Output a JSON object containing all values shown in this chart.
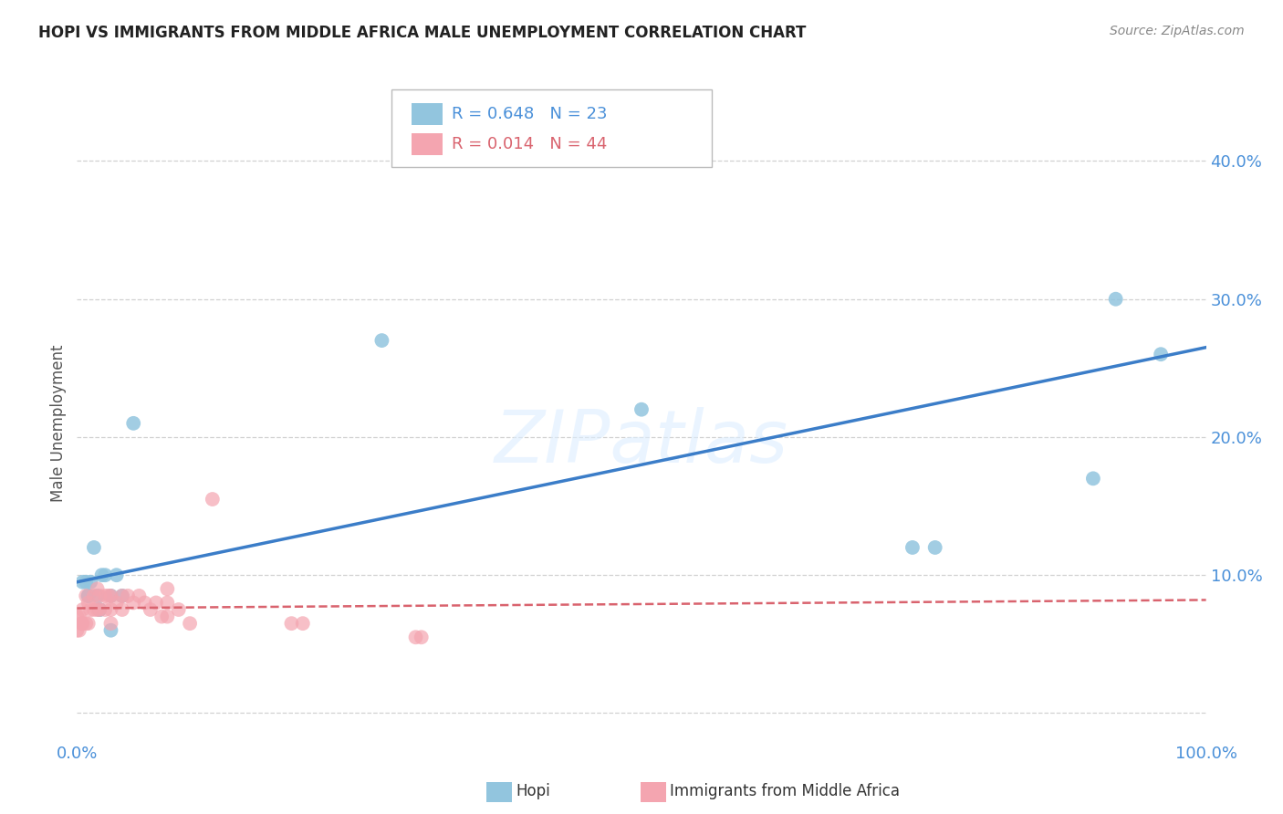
{
  "title": "HOPI VS IMMIGRANTS FROM MIDDLE AFRICA MALE UNEMPLOYMENT CORRELATION CHART",
  "source": "Source: ZipAtlas.com",
  "ylabel": "Male Unemployment",
  "watermark": "ZIPatlas",
  "xlim": [
    0,
    1.0
  ],
  "ylim": [
    -0.02,
    0.44
  ],
  "yticks": [
    0.0,
    0.1,
    0.2,
    0.3,
    0.4
  ],
  "ytick_labels": [
    "",
    "10.0%",
    "20.0%",
    "30.0%",
    "40.0%"
  ],
  "xticks": [
    0.0,
    0.2,
    0.4,
    0.6,
    0.8,
    1.0
  ],
  "xtick_labels": [
    "0.0%",
    "",
    "",
    "",
    "",
    "100.0%"
  ],
  "legend1_label": "Hopi",
  "legend2_label": "Immigrants from Middle Africa",
  "R_hopi": 0.648,
  "N_hopi": 23,
  "R_immig": 0.014,
  "N_immig": 44,
  "hopi_color": "#92c5de",
  "immig_color": "#f4a5b0",
  "hopi_line_color": "#3b7dc8",
  "immig_line_color": "#d9636e",
  "grid_color": "#cccccc",
  "hopi_scatter_x": [
    0.005,
    0.008,
    0.01,
    0.01,
    0.012,
    0.015,
    0.018,
    0.02,
    0.02,
    0.022,
    0.025,
    0.03,
    0.03,
    0.035,
    0.04,
    0.05,
    0.27,
    0.5,
    0.74,
    0.76,
    0.9,
    0.92,
    0.96
  ],
  "hopi_scatter_y": [
    0.095,
    0.095,
    0.085,
    0.085,
    0.095,
    0.12,
    0.085,
    0.075,
    0.075,
    0.1,
    0.1,
    0.085,
    0.06,
    0.1,
    0.085,
    0.21,
    0.27,
    0.22,
    0.12,
    0.12,
    0.17,
    0.3,
    0.26
  ],
  "immig_scatter_x": [
    0.0,
    0.0,
    0.002,
    0.002,
    0.004,
    0.005,
    0.005,
    0.008,
    0.008,
    0.01,
    0.01,
    0.012,
    0.015,
    0.015,
    0.018,
    0.018,
    0.02,
    0.02,
    0.025,
    0.025,
    0.028,
    0.03,
    0.03,
    0.03,
    0.035,
    0.04,
    0.04,
    0.045,
    0.05,
    0.055,
    0.06,
    0.065,
    0.07,
    0.075,
    0.08,
    0.08,
    0.08,
    0.09,
    0.1,
    0.12,
    0.19,
    0.2,
    0.3,
    0.305
  ],
  "immig_scatter_y": [
    0.07,
    0.06,
    0.07,
    0.06,
    0.065,
    0.075,
    0.065,
    0.085,
    0.065,
    0.08,
    0.065,
    0.075,
    0.085,
    0.075,
    0.09,
    0.075,
    0.085,
    0.075,
    0.085,
    0.075,
    0.085,
    0.085,
    0.075,
    0.065,
    0.08,
    0.085,
    0.075,
    0.085,
    0.08,
    0.085,
    0.08,
    0.075,
    0.08,
    0.07,
    0.09,
    0.08,
    0.07,
    0.075,
    0.065,
    0.155,
    0.065,
    0.065,
    0.055,
    0.055
  ],
  "hopi_line_x0": 0.0,
  "hopi_line_x1": 1.0,
  "hopi_line_y0": 0.095,
  "hopi_line_y1": 0.265,
  "immig_line_x0": 0.0,
  "immig_line_x1": 1.0,
  "immig_line_y0": 0.076,
  "immig_line_y1": 0.082,
  "background_color": "#ffffff"
}
